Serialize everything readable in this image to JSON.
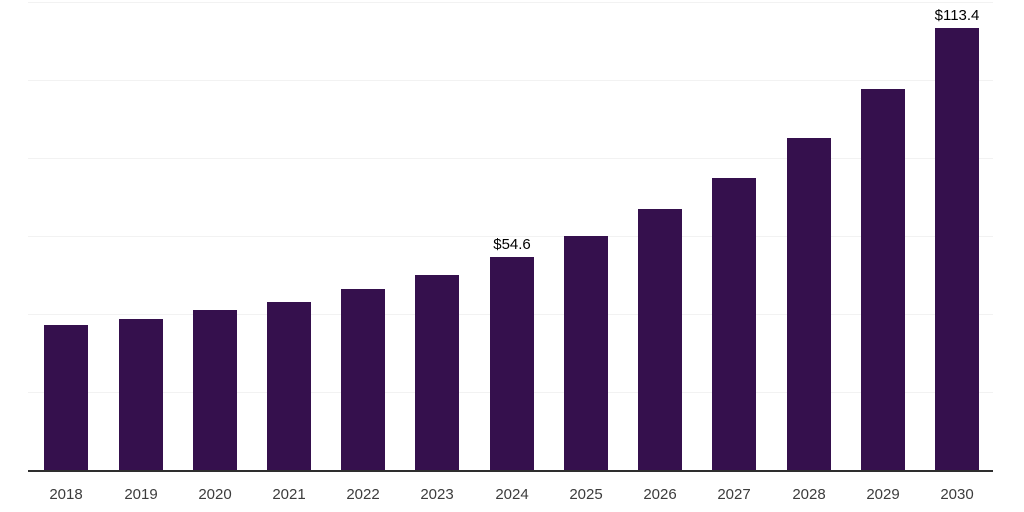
{
  "page": {
    "background_color": "#ffffff"
  },
  "chart_data": {
    "type": "bar",
    "title": "",
    "xlabel": "",
    "ylabel": "",
    "categories": [
      "2018",
      "2019",
      "2020",
      "2021",
      "2022",
      "2023",
      "2024",
      "2025",
      "2026",
      "2027",
      "2028",
      "2029",
      "2030"
    ],
    "values": [
      37.2,
      38.8,
      41.0,
      43.2,
      46.3,
      50.1,
      54.6,
      59.9,
      66.8,
      74.8,
      85.0,
      97.6,
      113.4
    ],
    "annotations": [
      {
        "category": "2024",
        "label": "$54.6"
      },
      {
        "category": "2030",
        "label": "$113.4"
      }
    ],
    "ylim": [
      0,
      120
    ],
    "gridline_step": 20,
    "grid": true,
    "y_tick_labels_visible": false,
    "legend_position": "none",
    "bar_color": "#35104d",
    "axis_line_color": "#2e2e2e",
    "gridline_color": "#f2f2f2",
    "tick_label_color": "#3c3c3c",
    "value_label_color": "#000000"
  }
}
